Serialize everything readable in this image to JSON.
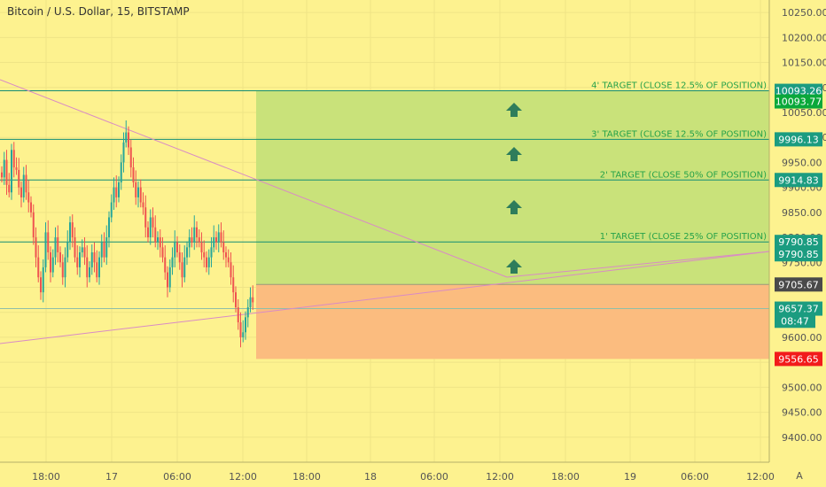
{
  "title": "Bitcoin / U.S. Dollar, 15, BITSTAMP",
  "axis_button": "A",
  "colors": {
    "background": "#fdf28f",
    "up_candle": "#26a69a",
    "down_candle": "#ef5350",
    "target_line": "#138d75",
    "target_label": "#27a24a",
    "profit_zone": "#c9e27a",
    "loss_zone": "#fbbc7f",
    "trend_line": "#d98bc5",
    "arrow": "#2e7d5b",
    "tag_green": "#1b9c80",
    "tag_bright_green": "#0aa83a",
    "tag_dark": "#4a4a4a",
    "tag_red": "#f21b1b"
  },
  "chart_data": {
    "type": "candlestick",
    "ylim": [
      9350,
      10275
    ],
    "y_ticks": [
      "10250.00",
      "10200.00",
      "10150.00",
      "10100.00",
      "10050.00",
      "10000.00",
      "9950.00",
      "9900.00",
      "9850.00",
      "9800.00",
      "9750.00",
      "9700.00",
      "9650.00",
      "9600.00",
      "9550.00",
      "9500.00",
      "9450.00",
      "9400.00"
    ],
    "x_ticks": [
      "18:00",
      "17",
      "06:00",
      "12:00",
      "18:00",
      "18",
      "06:00",
      "12:00",
      "18:00",
      "19",
      "06:00",
      "12:00"
    ],
    "series": [
      {
        "closes": [
          9920,
          9955,
          9905,
          9890,
          9975,
          9940,
          9935,
          9900,
          9880,
          9925,
          9890,
          9870,
          9850,
          9800,
          9760,
          9720,
          9690,
          9740,
          9810,
          9770,
          9730,
          9760,
          9800,
          9770,
          9750,
          9720,
          9760,
          9790,
          9830,
          9800,
          9760,
          9740,
          9770,
          9780,
          9760,
          9720,
          9740,
          9770,
          9750,
          9720,
          9760,
          9790,
          9760,
          9800,
          9840,
          9870,
          9900,
          9880,
          9910,
          9950,
          9990,
          10010,
          9980,
          9940,
          9910,
          9880,
          9900,
          9870,
          9860,
          9820,
          9800,
          9840,
          9820,
          9790,
          9800,
          9780,
          9760,
          9730,
          9700,
          9740,
          9760,
          9790,
          9770,
          9750,
          9720,
          9760,
          9780,
          9800,
          9790,
          9820,
          9800,
          9790,
          9770,
          9760,
          9740,
          9760,
          9780,
          9800,
          9790,
          9810,
          9790,
          9770,
          9760,
          9750,
          9720,
          9690,
          9660,
          9630,
          9600,
          9610,
          9640,
          9660,
          9680,
          9670
        ]
      }
    ],
    "targets": [
      {
        "label": "4' TARGET (CLOSE 12.5% OF POSITION)",
        "price": 10093.26,
        "tag": "10093.26"
      },
      {
        "label": "3' TARGET (CLOSE 12.5% OF POSITION)",
        "price": 9996.13,
        "tag": "9996.13"
      },
      {
        "label": "2' TARGET (CLOSE 50% OF POSITION)",
        "price": 9914.83,
        "tag": "9914.83"
      },
      {
        "label": "1' TARGET (CLOSE 25% OF POSITION)",
        "price": 9790.85,
        "tag": "9790.85"
      }
    ],
    "price_tags": [
      {
        "text": "10093.26",
        "price": 10093.26,
        "color": "tag_green"
      },
      {
        "text": "10093.77",
        "price": 10072,
        "color": "tag_bright_green"
      },
      {
        "text": "9996.13",
        "price": 9996.13,
        "color": "tag_green"
      },
      {
        "text": "9914.83",
        "price": 9914.83,
        "color": "tag_green"
      },
      {
        "text": "9790.85",
        "price": 9790.85,
        "color": "tag_green"
      },
      {
        "text": "9790.85",
        "price": 9766,
        "color": "tag_green"
      },
      {
        "text": "9705.67",
        "price": 9705.67,
        "color": "tag_dark"
      },
      {
        "text": "9657.37",
        "price": 9657.37,
        "color": "tag_green"
      },
      {
        "text": "08:47",
        "price": 9633,
        "color": "tag_green"
      },
      {
        "text": "9556.65",
        "price": 9556.65,
        "color": "tag_red"
      }
    ],
    "entry_price": 9705.67,
    "stop_price": 9556.65,
    "current_price": 9657.37
  }
}
